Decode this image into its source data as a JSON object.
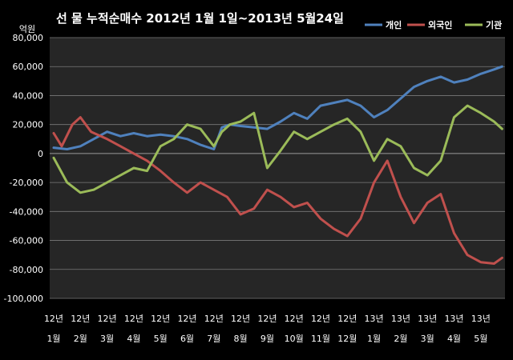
{
  "chart_data": {
    "type": "line",
    "title": "선 물 누적순매수 2012년 1월 1일~2013년 5월24일",
    "ylabel": "억원",
    "ylim": [
      -100000,
      80000
    ],
    "yticks": [
      "80,000",
      "60,000",
      "40,000",
      "20,000",
      "0",
      "-20,000",
      "-40,000",
      "-60,000",
      "-80,000",
      "-100,000"
    ],
    "ytick_values": [
      80000,
      60000,
      40000,
      20000,
      0,
      -20000,
      -40000,
      -60000,
      -80000,
      -100000
    ],
    "grid": true,
    "legend_position": "top-right",
    "x_categories": [
      {
        "year": "12년",
        "month": "1월"
      },
      {
        "year": "12년",
        "month": "2월"
      },
      {
        "year": "12년",
        "month": "3월"
      },
      {
        "year": "12년",
        "month": "4월"
      },
      {
        "year": "12년",
        "month": "5월"
      },
      {
        "year": "12년",
        "month": "6월"
      },
      {
        "year": "12년",
        "month": "7월"
      },
      {
        "year": "12년",
        "month": "8월"
      },
      {
        "year": "12년",
        "month": "9월"
      },
      {
        "year": "12년",
        "month": "10월"
      },
      {
        "year": "12년",
        "month": "11월"
      },
      {
        "year": "12년",
        "month": "12월"
      },
      {
        "year": "13년",
        "month": "1월"
      },
      {
        "year": "13년",
        "month": "2월"
      },
      {
        "year": "13년",
        "month": "3월"
      },
      {
        "year": "13년",
        "month": "4월"
      },
      {
        "year": "13년",
        "month": "5월"
      }
    ],
    "series": [
      {
        "name": "개인",
        "color": "#4f81bd",
        "values": [
          [
            0,
            4000
          ],
          [
            0.5,
            3000
          ],
          [
            1,
            5000
          ],
          [
            1.5,
            10000
          ],
          [
            2,
            15000
          ],
          [
            2.5,
            12000
          ],
          [
            3,
            14000
          ],
          [
            3.5,
            12000
          ],
          [
            4,
            13000
          ],
          [
            4.5,
            12000
          ],
          [
            5,
            10000
          ],
          [
            5.5,
            6000
          ],
          [
            6,
            3000
          ],
          [
            6.3,
            18000
          ],
          [
            6.6,
            20000
          ],
          [
            7,
            19000
          ],
          [
            7.5,
            18000
          ],
          [
            8,
            17000
          ],
          [
            8.5,
            22000
          ],
          [
            9,
            28000
          ],
          [
            9.5,
            24000
          ],
          [
            10,
            33000
          ],
          [
            10.5,
            35000
          ],
          [
            11,
            37000
          ],
          [
            11.5,
            33000
          ],
          [
            12,
            25000
          ],
          [
            12.5,
            30000
          ],
          [
            13,
            38000
          ],
          [
            13.5,
            46000
          ],
          [
            14,
            50000
          ],
          [
            14.5,
            53000
          ],
          [
            15,
            49000
          ],
          [
            15.5,
            51000
          ],
          [
            16,
            55000
          ],
          [
            16.5,
            58000
          ],
          [
            16.8,
            60000
          ]
        ]
      },
      {
        "name": "외국인",
        "color": "#c0504d",
        "values": [
          [
            0,
            14000
          ],
          [
            0.3,
            5000
          ],
          [
            0.7,
            20000
          ],
          [
            1,
            25000
          ],
          [
            1.4,
            15000
          ],
          [
            2,
            10000
          ],
          [
            2.5,
            5000
          ],
          [
            3,
            0
          ],
          [
            3.5,
            -5000
          ],
          [
            4,
            -12000
          ],
          [
            4.5,
            -20000
          ],
          [
            5,
            -27000
          ],
          [
            5.5,
            -20000
          ],
          [
            6,
            -25000
          ],
          [
            6.5,
            -30000
          ],
          [
            7,
            -42000
          ],
          [
            7.5,
            -38000
          ],
          [
            8,
            -25000
          ],
          [
            8.5,
            -30000
          ],
          [
            9,
            -37000
          ],
          [
            9.5,
            -34000
          ],
          [
            10,
            -45000
          ],
          [
            10.5,
            -52000
          ],
          [
            11,
            -57000
          ],
          [
            11.5,
            -45000
          ],
          [
            12,
            -20000
          ],
          [
            12.5,
            -5000
          ],
          [
            13,
            -30000
          ],
          [
            13.5,
            -48000
          ],
          [
            14,
            -34000
          ],
          [
            14.5,
            -28000
          ],
          [
            15,
            -55000
          ],
          [
            15.5,
            -70000
          ],
          [
            16,
            -75000
          ],
          [
            16.5,
            -76000
          ],
          [
            16.8,
            -72000
          ]
        ]
      },
      {
        "name": "기관",
        "color": "#9bbb59",
        "values": [
          [
            0,
            -3000
          ],
          [
            0.5,
            -20000
          ],
          [
            1,
            -27000
          ],
          [
            1.5,
            -25000
          ],
          [
            2,
            -20000
          ],
          [
            2.5,
            -15000
          ],
          [
            3,
            -10000
          ],
          [
            3.5,
            -12000
          ],
          [
            4,
            5000
          ],
          [
            4.5,
            10000
          ],
          [
            5,
            20000
          ],
          [
            5.5,
            17000
          ],
          [
            6,
            5000
          ],
          [
            6.3,
            15000
          ],
          [
            6.6,
            20000
          ],
          [
            7,
            22000
          ],
          [
            7.5,
            28000
          ],
          [
            8,
            -10000
          ],
          [
            8.5,
            2000
          ],
          [
            9,
            15000
          ],
          [
            9.5,
            10000
          ],
          [
            10,
            15000
          ],
          [
            10.5,
            20000
          ],
          [
            11,
            24000
          ],
          [
            11.5,
            15000
          ],
          [
            12,
            -5000
          ],
          [
            12.5,
            10000
          ],
          [
            13,
            5000
          ],
          [
            13.5,
            -10000
          ],
          [
            14,
            -15000
          ],
          [
            14.5,
            -5000
          ],
          [
            15,
            25000
          ],
          [
            15.5,
            33000
          ],
          [
            16,
            28000
          ],
          [
            16.5,
            22000
          ],
          [
            16.8,
            17000
          ]
        ]
      }
    ]
  }
}
